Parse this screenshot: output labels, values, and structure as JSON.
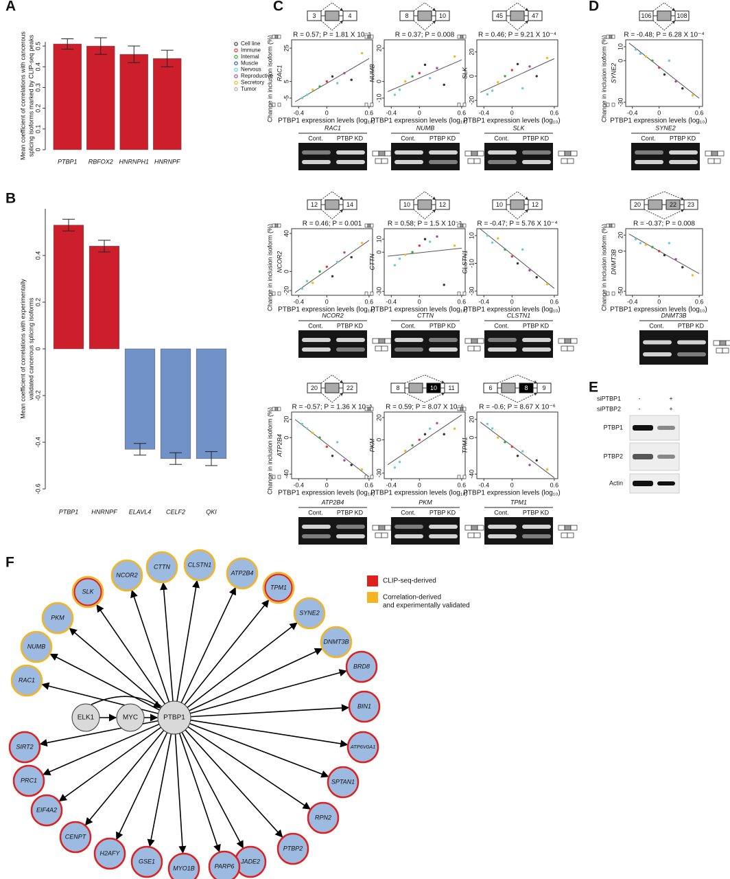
{
  "panels": [
    "A",
    "B",
    "C",
    "D",
    "E",
    "F"
  ],
  "chart_data": [
    {
      "type": "bar",
      "ylabel": [
        "Mean coefficient of correlations with cancerous",
        "splicing isoforms marked by CLIP-seq peaks"
      ],
      "categories": [
        "PTBP1",
        "RBFOX2",
        "HNRNPH1",
        "HNRNPF"
      ],
      "values": [
        0.51,
        0.5,
        0.46,
        0.44
      ],
      "errors": [
        0.025,
        0.04,
        0.04,
        0.04
      ],
      "colors": [
        "#cc1f2b",
        "#cc1f2b",
        "#cc1f2b",
        "#cc1f2b"
      ],
      "ylim": [
        0,
        0.52
      ],
      "yticks": [
        0,
        0.1,
        0.2,
        0.3,
        0.4,
        0.5
      ]
    },
    {
      "type": "bar",
      "ylabel": [
        "Mean coefficient of correlations with experimentally",
        "validated cancerous splicing isoforms"
      ],
      "categories": [
        "PTBP1",
        "HNRNPF",
        "ELAVL4",
        "CELF2",
        "QKI"
      ],
      "values": [
        0.53,
        0.44,
        -0.43,
        -0.47,
        -0.47
      ],
      "errors": [
        0.025,
        0.025,
        0.025,
        0.025,
        0.03
      ],
      "colors": [
        "#cc1f2b",
        "#cc1f2b",
        "#7092c8",
        "#7092c8",
        "#7092c8"
      ],
      "ylim": [
        -0.6,
        0.6
      ],
      "yticks": [
        -0.6,
        -0.4,
        -0.2,
        0,
        0.2,
        0.4
      ]
    },
    {
      "type": "scatter",
      "gene": "RAC1",
      "exons": [
        "3",
        "4"
      ],
      "stat": "R = 0.57; P = 1.81 X 10⁻⁵",
      "xlabel": "PTBP1 expression levels (log₁₀)",
      "ylabel": "Change in inclusion isoform (%)",
      "x": [
        -0.35,
        -0.28,
        -0.2,
        -0.1,
        0,
        0.08,
        0.15,
        0.25,
        0.35,
        0.5
      ],
      "y": [
        -5,
        -3,
        0,
        2,
        5,
        8,
        4,
        10,
        6,
        22
      ],
      "colors": [
        "#6cd",
        "#6cd",
        "#eb2",
        "#3a3",
        "#e33",
        "#333",
        "#6cd",
        "#a4a",
        "#333",
        "#eb2"
      ],
      "xlim": [
        -0.5,
        0.65
      ],
      "ylim": [
        -10,
        30
      ],
      "xticks": [
        -0.4,
        0,
        0.6
      ],
      "yticks": [
        -5,
        5,
        25
      ]
    },
    {
      "type": "scatter",
      "gene": "NUMB",
      "exons": [
        "8",
        "10"
      ],
      "stat": "R = 0.37; P = 0.008",
      "xlabel": "PTBP1 expression levels (log₁₀)",
      "x": [
        -0.35,
        -0.28,
        -0.2,
        -0.1,
        0,
        0.08,
        0.15,
        0.25,
        0.35,
        0.5
      ],
      "y": [
        -8,
        -5,
        0,
        3,
        5,
        10,
        2,
        8,
        -2,
        15
      ],
      "colors": [
        "#6cd",
        "#6cd",
        "#eb2",
        "#3a3",
        "#e33",
        "#333",
        "#6cd",
        "#a4a",
        "#333",
        "#eb2"
      ],
      "xlim": [
        -0.5,
        0.65
      ],
      "ylim": [
        -15,
        25
      ],
      "xticks": [
        -0.4,
        0,
        0.6
      ],
      "yticks": [
        -10,
        0,
        20
      ]
    },
    {
      "type": "scatter",
      "gene": "SLK",
      "exons": [
        "45",
        "47"
      ],
      "stat": "R = 0.46; P = 9.21 X 10⁻⁴",
      "xlabel": "PTBP1 expression levels (log₁₀)",
      "x": [
        -0.35,
        -0.28,
        -0.2,
        -0.1,
        0,
        0.08,
        0.15,
        0.25,
        0.35,
        0.5
      ],
      "y": [
        -15,
        -12,
        -5,
        0,
        5,
        10,
        -10,
        8,
        0,
        15
      ],
      "colors": [
        "#6cd",
        "#6cd",
        "#eb2",
        "#3a3",
        "#e33",
        "#333",
        "#6cd",
        "#a4a",
        "#333",
        "#eb2"
      ],
      "xlim": [
        -0.5,
        0.65
      ],
      "ylim": [
        -25,
        30
      ],
      "xticks": [
        -0.4,
        0,
        0.6
      ],
      "yticks": [
        -20,
        0,
        20
      ]
    },
    {
      "type": "scatter",
      "gene": "SYNE2",
      "exons": [
        "106",
        "108"
      ],
      "stat": "R = -0.48; P = 6.28 X 10⁻⁴",
      "xlabel": "PTBP1 expression levels (log₁₀)",
      "ylabel": "Change in inclusion isoform (%)",
      "x": [
        -0.35,
        -0.28,
        -0.2,
        -0.1,
        0,
        0.08,
        0.15,
        0.25,
        0.35,
        0.5
      ],
      "y": [
        8,
        5,
        3,
        0,
        -5,
        -10,
        0,
        -15,
        -20,
        -25
      ],
      "colors": [
        "#6cd",
        "#6cd",
        "#eb2",
        "#3a3",
        "#e33",
        "#333",
        "#6cd",
        "#a4a",
        "#333",
        "#eb2"
      ],
      "xlim": [
        -0.5,
        0.65
      ],
      "ylim": [
        -33,
        15
      ],
      "xticks": [
        -0.4,
        0,
        0.6
      ],
      "yticks": [
        -30,
        0,
        10
      ]
    },
    {
      "type": "scatter",
      "gene": "NCOR2",
      "exons": [
        "12",
        "14"
      ],
      "stat": "R = 0.46; P = 0.001",
      "xlabel": "PTBP1 expression levels (log₁₀)",
      "ylabel": "Change in inclusion isoform (%)",
      "x": [
        -0.35,
        -0.28,
        -0.2,
        -0.1,
        0,
        0.08,
        0.15,
        0.25,
        0.35,
        0.5
      ],
      "y": [
        -18,
        -10,
        -12,
        0,
        5,
        -5,
        10,
        20,
        15,
        30
      ],
      "colors": [
        "#6cd",
        "#6cd",
        "#eb2",
        "#3a3",
        "#e33",
        "#333",
        "#6cd",
        "#a4a",
        "#333",
        "#eb2"
      ],
      "xlim": [
        -0.5,
        0.65
      ],
      "ylim": [
        -25,
        45
      ],
      "xticks": [
        -0.4,
        0,
        0.6
      ],
      "yticks": [
        -20,
        0,
        40
      ]
    },
    {
      "type": "scatter",
      "gene": "CTTN",
      "exons": [
        "10",
        "12"
      ],
      "stat": "R = 0.58; P = 1.5 X 10⁻⁵",
      "xlabel": "PTBP1 expression levels (log₁₀)",
      "x": [
        -0.35,
        -0.28,
        -0.2,
        -0.1,
        0,
        0.08,
        0.15,
        0.25,
        0.35,
        0.5
      ],
      "y": [
        -10,
        -5,
        -2,
        0,
        5,
        10,
        8,
        12,
        -25,
        5
      ],
      "colors": [
        "#6cd",
        "#6cd",
        "#eb2",
        "#3a3",
        "#e33",
        "#333",
        "#6cd",
        "#a4a",
        "#333",
        "#eb2"
      ],
      "xlim": [
        -0.5,
        0.65
      ],
      "ylim": [
        -33,
        18
      ],
      "xticks": [
        -0.4,
        0,
        0.6
      ],
      "yticks": [
        -30,
        0,
        10
      ]
    },
    {
      "type": "scatter",
      "gene": "CLSTN1",
      "exons": [
        "10",
        "12"
      ],
      "stat": "R = -0.47; P = 5.76 X 10⁻⁴",
      "xlabel": "PTBP1 expression levels (log₁₀)",
      "x": [
        -0.35,
        -0.28,
        -0.2,
        -0.1,
        0,
        0.08,
        0.15,
        0.25,
        0.35,
        0.5
      ],
      "y": [
        10,
        5,
        8,
        0,
        -5,
        -10,
        0,
        -15,
        -20,
        -25
      ],
      "colors": [
        "#6cd",
        "#6cd",
        "#eb2",
        "#3a3",
        "#e33",
        "#333",
        "#6cd",
        "#a4a",
        "#333",
        "#eb2"
      ],
      "xlim": [
        -0.5,
        0.65
      ],
      "ylim": [
        -33,
        15
      ],
      "xticks": [
        -0.4,
        0,
        0.6
      ],
      "yticks": [
        -30,
        -10,
        10
      ]
    },
    {
      "type": "scatter",
      "gene": "DNMT3B",
      "exons": [
        "20",
        "22",
        "23"
      ],
      "exon_colors": [
        "#fff",
        "#aaa",
        "#fff"
      ],
      "stat": "R = -0.37; P = 0.008",
      "xlabel": "PTBP1 expression levels (log₁₀)",
      "ylabel": "Change in inclusion isoform (%)",
      "x": [
        -0.35,
        -0.28,
        -0.2,
        -0.1,
        0,
        0.08,
        0.15,
        0.25,
        0.35,
        0.5
      ],
      "y": [
        15,
        10,
        8,
        5,
        0,
        -5,
        10,
        -10,
        -20,
        -30
      ],
      "colors": [
        "#6cd",
        "#6cd",
        "#eb2",
        "#3a3",
        "#e33",
        "#333",
        "#6cd",
        "#a4a",
        "#333",
        "#eb2"
      ],
      "xlim": [
        -0.5,
        0.65
      ],
      "ylim": [
        -55,
        28
      ],
      "xticks": [
        -0.4,
        0,
        0.6
      ],
      "yticks": [
        -50,
        0,
        20
      ]
    },
    {
      "type": "scatter",
      "gene": "ATP2B4",
      "exons": [
        "20",
        "22"
      ],
      "stat": "R = -0.57; P = 1.36 X 10⁻⁵",
      "xlabel": "PTBP1 expression levels (log₁₀)",
      "ylabel": "Change in inclusion isoform (%)",
      "x": [
        -0.35,
        -0.28,
        -0.2,
        -0.1,
        0,
        0.08,
        0.15,
        0.25,
        0.35,
        0.5
      ],
      "y": [
        15,
        10,
        5,
        0,
        -10,
        -20,
        -5,
        -25,
        -30,
        -35
      ],
      "colors": [
        "#6cd",
        "#6cd",
        "#eb2",
        "#3a3",
        "#e33",
        "#333",
        "#6cd",
        "#a4a",
        "#333",
        "#eb2"
      ],
      "xlim": [
        -0.5,
        0.65
      ],
      "ylim": [
        -45,
        28
      ],
      "xticks": [
        -0.4,
        0,
        0.6
      ],
      "yticks": [
        -40,
        0,
        20
      ]
    },
    {
      "type": "scatter",
      "gene": "PKM",
      "exons": [
        "8",
        "10",
        "11"
      ],
      "exon_colors": [
        "#fff",
        "#000",
        "#fff"
      ],
      "stat": "R = 0.59; P = 8.07 X 10⁻⁶",
      "xlabel": "PTBP1 expression levels (log₁₀)",
      "x": [
        -0.35,
        -0.28,
        -0.2,
        -0.1,
        0,
        0.08,
        0.15,
        0.25,
        0.35,
        0.5
      ],
      "y": [
        -25,
        -20,
        -10,
        -5,
        0,
        5,
        10,
        15,
        5,
        10
      ],
      "colors": [
        "#6cd",
        "#6cd",
        "#eb2",
        "#3a3",
        "#e33",
        "#333",
        "#6cd",
        "#a4a",
        "#333",
        "#eb2"
      ],
      "xlim": [
        -0.5,
        0.65
      ],
      "ylim": [
        -35,
        25
      ],
      "xticks": [
        -0.4,
        0,
        0.6
      ],
      "yticks": [
        -30,
        0,
        20
      ]
    },
    {
      "type": "scatter",
      "gene": "TPM1",
      "exons": [
        "6",
        "8",
        "9"
      ],
      "exon_colors": [
        "#fff",
        "#000",
        "#fff"
      ],
      "stat": "R = -0.6; P = 8.67 X 10⁻⁶",
      "xlabel": "PTBP1 expression levels (log₁₀)",
      "x": [
        -0.35,
        -0.28,
        -0.2,
        -0.1,
        0,
        0.08,
        0.15,
        0.25,
        0.35,
        0.5
      ],
      "y": [
        15,
        10,
        0,
        -5,
        -10,
        -20,
        -15,
        -30,
        -25,
        -35
      ],
      "colors": [
        "#6cd",
        "#6cd",
        "#eb2",
        "#3a3",
        "#e33",
        "#333",
        "#6cd",
        "#a4a",
        "#333",
        "#eb2"
      ],
      "xlim": [
        -0.5,
        0.65
      ],
      "ylim": [
        -45,
        28
      ],
      "xticks": [
        -0.4,
        0,
        0.6
      ],
      "yticks": [
        -40,
        0,
        20
      ]
    }
  ],
  "legend": [
    {
      "name": "Cell line",
      "color": "#333"
    },
    {
      "name": "Immune",
      "color": "#e33"
    },
    {
      "name": "Internal",
      "color": "#3a3"
    },
    {
      "name": "Muscle",
      "color": "#35a"
    },
    {
      "name": "Nervous",
      "color": "#6cd"
    },
    {
      "name": "Reproductive",
      "color": "#a4a"
    },
    {
      "name": "Secretory",
      "color": "#eb2"
    },
    {
      "name": "Tumor",
      "color": "#aaa"
    }
  ],
  "gels": [
    {
      "gene": "RAC1",
      "lanes": [
        "Cont.",
        "PTBP KD"
      ]
    },
    {
      "gene": "NUMB",
      "lanes": [
        "Cont.",
        "PTBP KD"
      ]
    },
    {
      "gene": "SLK",
      "lanes": [
        "Cont.",
        "PTBP KD"
      ]
    },
    {
      "gene": "SYNE2",
      "lanes": [
        "Cont.",
        "PTBP KD"
      ]
    },
    {
      "gene": "NCOR2",
      "lanes": [
        "Cont.",
        "PTBP KD"
      ]
    },
    {
      "gene": "CTTN",
      "lanes": [
        "Cont.",
        "PTBP KD"
      ]
    },
    {
      "gene": "CLSTN1",
      "lanes": [
        "Cont.",
        "PTBP KD"
      ]
    },
    {
      "gene": "DNMT3B",
      "lanes": [
        "Cont.",
        "PTBP KD"
      ]
    },
    {
      "gene": "ATP2B4",
      "lanes": [
        "Cont.",
        "PTBP KD"
      ]
    },
    {
      "gene": "PKM",
      "lanes": [
        "Cont.",
        "PTBP KD"
      ]
    },
    {
      "gene": "TPM1",
      "lanes": [
        "Cont.",
        "PTBP KD"
      ]
    }
  ],
  "western": {
    "treatments": [
      {
        "name": "siPTBP1",
        "marks": [
          "-",
          "+"
        ]
      },
      {
        "name": "siPTBP2",
        "marks": [
          "-",
          "+"
        ]
      }
    ],
    "proteins": [
      "PTBP1",
      "PTBP2",
      "Actin"
    ]
  },
  "network": {
    "legend": [
      {
        "lines": [
          "CLIP-seq-derived"
        ],
        "color": "#e02020"
      },
      {
        "lines": [
          "Correlation-derived",
          "and experimentally validated"
        ],
        "color": "#f5b520"
      }
    ],
    "nodes": [
      {
        "label": "ELK1",
        "type": "hub"
      },
      {
        "label": "MYC",
        "type": "hub"
      },
      {
        "label": "PTBP1",
        "type": "hub"
      },
      {
        "label": "NCOR2",
        "type": "validated"
      },
      {
        "label": "CTTN",
        "type": "validated"
      },
      {
        "label": "CLSTN1",
        "type": "validated"
      },
      {
        "label": "ATP2B4",
        "type": "validated"
      },
      {
        "label": "SLK",
        "type": "both"
      },
      {
        "label": "TPM1",
        "type": "both"
      },
      {
        "label": "PKM",
        "type": "validated"
      },
      {
        "label": "SYNE2",
        "type": "validated"
      },
      {
        "label": "NUMB",
        "type": "validated"
      },
      {
        "label": "DNMT3B",
        "type": "validated"
      },
      {
        "label": "RAC1",
        "type": "validated"
      },
      {
        "label": "BRD8",
        "type": "clip"
      },
      {
        "label": "BIN1",
        "type": "clip"
      },
      {
        "label": "ATP6V0A1",
        "type": "clip"
      },
      {
        "label": "SIRT2",
        "type": "clip"
      },
      {
        "label": "PRC1",
        "type": "clip"
      },
      {
        "label": "SPTAN1",
        "type": "clip"
      },
      {
        "label": "EIF4A2",
        "type": "clip"
      },
      {
        "label": "RPN2",
        "type": "clip"
      },
      {
        "label": "CENPT",
        "type": "clip"
      },
      {
        "label": "PTBP2",
        "type": "clip"
      },
      {
        "label": "H2AFY",
        "type": "clip"
      },
      {
        "label": "JADE2",
        "type": "clip"
      },
      {
        "label": "GSE1",
        "type": "clip"
      },
      {
        "label": "PARP6",
        "type": "clip"
      },
      {
        "label": "MYO1B",
        "type": "clip"
      }
    ]
  }
}
